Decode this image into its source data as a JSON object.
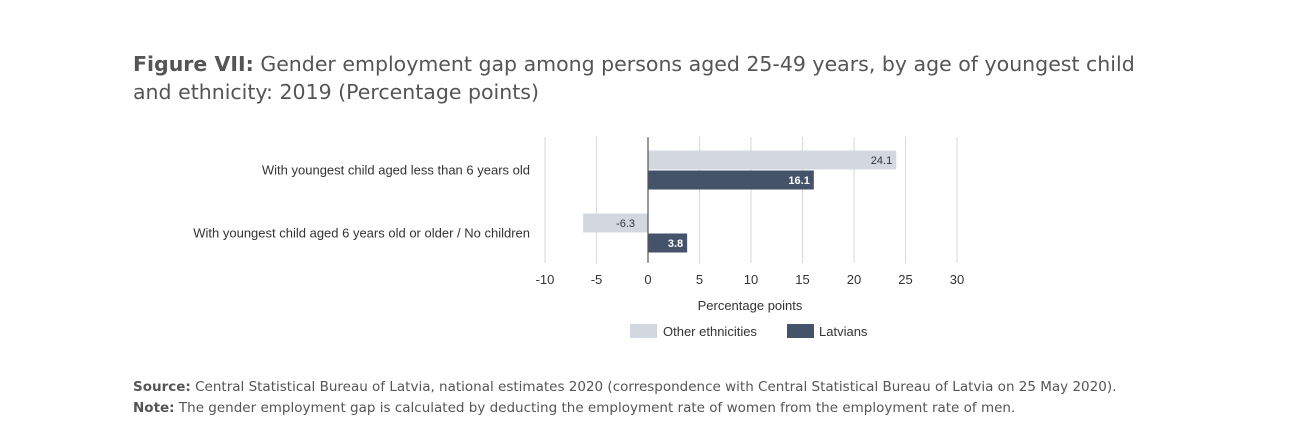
{
  "title": {
    "prefix": "Figure VII:",
    "text": "Gender employment gap among persons aged 25-49 years, by age of youngest child and ethnicity: 2019 (Percentage points)"
  },
  "footer": {
    "source_label": "Source:",
    "source_text": "Central Statistical Bureau of Latvia, national estimates 2020 (correspondence with Central Statistical Bureau of Latvia on 25 May 2020).",
    "note_label": "Note:",
    "note_text": "The gender employment gap is calculated by deducting the employment rate of women from the employment rate of men."
  },
  "chart_data": {
    "type": "bar",
    "orientation": "horizontal",
    "categories": [
      "With youngest child aged less than 6 years old",
      "With youngest child aged 6 years old or older / No children"
    ],
    "series": [
      {
        "name": "Other ethnicities",
        "values": [
          24.1,
          -6.3
        ],
        "color": "#d3d8e0"
      },
      {
        "name": "Latvians",
        "values": [
          16.1,
          3.8
        ],
        "color": "#44536a"
      }
    ],
    "xlabel": "Percentage points",
    "xlim": [
      -10,
      30
    ],
    "xticks": [
      -10,
      -5,
      0,
      5,
      10,
      15,
      20,
      25,
      30
    ],
    "grid": true,
    "legend": "bottom"
  }
}
